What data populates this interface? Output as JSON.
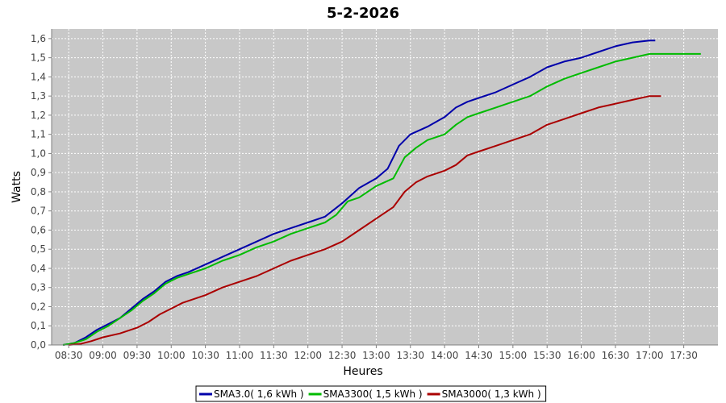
{
  "chart_data": {
    "type": "line",
    "title": "5-2-2026",
    "xlabel": "Heures",
    "ylabel": "Watts",
    "ylim": [
      0,
      1.65
    ],
    "xlim": [
      "08:15",
      "18:00"
    ],
    "y_ticks": [
      "0,0",
      "0,1",
      "0,2",
      "0,3",
      "0,4",
      "0,5",
      "0,6",
      "0,7",
      "0,8",
      "0,9",
      "1,0",
      "1,1",
      "1,2",
      "1,3",
      "1,4",
      "1,5",
      "1,6"
    ],
    "x_ticks": [
      "08:30",
      "09:00",
      "09:30",
      "10:00",
      "10:30",
      "11:00",
      "11:30",
      "12:00",
      "12:30",
      "13:00",
      "13:30",
      "14:00",
      "14:30",
      "15:00",
      "15:30",
      "16:00",
      "16:30",
      "17:00",
      "17:30"
    ],
    "grid": true,
    "legend_position": "bottom",
    "series": [
      {
        "name": "SMA3.0( 1,6 kWh )",
        "color": "#0000aa",
        "points": [
          [
            "08:25",
            0.0
          ],
          [
            "08:35",
            0.01
          ],
          [
            "08:45",
            0.04
          ],
          [
            "08:55",
            0.08
          ],
          [
            "09:05",
            0.11
          ],
          [
            "09:15",
            0.14
          ],
          [
            "09:25",
            0.19
          ],
          [
            "09:35",
            0.24
          ],
          [
            "09:45",
            0.28
          ],
          [
            "09:55",
            0.33
          ],
          [
            "10:05",
            0.36
          ],
          [
            "10:15",
            0.38
          ],
          [
            "10:30",
            0.42
          ],
          [
            "10:45",
            0.46
          ],
          [
            "11:00",
            0.5
          ],
          [
            "11:15",
            0.54
          ],
          [
            "11:30",
            0.58
          ],
          [
            "11:45",
            0.61
          ],
          [
            "12:00",
            0.64
          ],
          [
            "12:15",
            0.67
          ],
          [
            "12:30",
            0.74
          ],
          [
            "12:45",
            0.82
          ],
          [
            "13:00",
            0.87
          ],
          [
            "13:10",
            0.92
          ],
          [
            "13:20",
            1.04
          ],
          [
            "13:30",
            1.1
          ],
          [
            "13:45",
            1.14
          ],
          [
            "14:00",
            1.19
          ],
          [
            "14:10",
            1.24
          ],
          [
            "14:20",
            1.27
          ],
          [
            "14:30",
            1.29
          ],
          [
            "14:45",
            1.32
          ],
          [
            "15:00",
            1.36
          ],
          [
            "15:15",
            1.4
          ],
          [
            "15:30",
            1.45
          ],
          [
            "15:45",
            1.48
          ],
          [
            "16:00",
            1.5
          ],
          [
            "16:15",
            1.53
          ],
          [
            "16:30",
            1.56
          ],
          [
            "16:45",
            1.58
          ],
          [
            "17:00",
            1.59
          ],
          [
            "17:05",
            1.59
          ]
        ]
      },
      {
        "name": "SMA3300( 1,5 kWh )",
        "color": "#00bb00",
        "points": [
          [
            "08:25",
            0.0
          ],
          [
            "08:35",
            0.01
          ],
          [
            "08:45",
            0.03
          ],
          [
            "08:55",
            0.07
          ],
          [
            "09:05",
            0.1
          ],
          [
            "09:15",
            0.14
          ],
          [
            "09:25",
            0.18
          ],
          [
            "09:35",
            0.23
          ],
          [
            "09:45",
            0.27
          ],
          [
            "09:55",
            0.32
          ],
          [
            "10:05",
            0.35
          ],
          [
            "10:15",
            0.37
          ],
          [
            "10:30",
            0.4
          ],
          [
            "10:45",
            0.44
          ],
          [
            "11:00",
            0.47
          ],
          [
            "11:15",
            0.51
          ],
          [
            "11:30",
            0.54
          ],
          [
            "11:45",
            0.58
          ],
          [
            "12:00",
            0.61
          ],
          [
            "12:15",
            0.64
          ],
          [
            "12:25",
            0.68
          ],
          [
            "12:35",
            0.75
          ],
          [
            "12:45",
            0.77
          ],
          [
            "13:00",
            0.83
          ],
          [
            "13:15",
            0.87
          ],
          [
            "13:25",
            0.98
          ],
          [
            "13:35",
            1.03
          ],
          [
            "13:45",
            1.07
          ],
          [
            "14:00",
            1.1
          ],
          [
            "14:10",
            1.15
          ],
          [
            "14:20",
            1.19
          ],
          [
            "14:30",
            1.21
          ],
          [
            "14:45",
            1.24
          ],
          [
            "15:00",
            1.27
          ],
          [
            "15:15",
            1.3
          ],
          [
            "15:30",
            1.35
          ],
          [
            "15:45",
            1.39
          ],
          [
            "16:00",
            1.42
          ],
          [
            "16:15",
            1.45
          ],
          [
            "16:30",
            1.48
          ],
          [
            "16:45",
            1.5
          ],
          [
            "17:00",
            1.52
          ],
          [
            "17:30",
            1.52
          ],
          [
            "17:45",
            1.52
          ]
        ]
      },
      {
        "name": "SMA3000( 1,3 kWh )",
        "color": "#aa0000",
        "points": [
          [
            "08:30",
            0.0
          ],
          [
            "08:40",
            0.005
          ],
          [
            "08:50",
            0.02
          ],
          [
            "09:00",
            0.04
          ],
          [
            "09:15",
            0.06
          ],
          [
            "09:30",
            0.09
          ],
          [
            "09:40",
            0.12
          ],
          [
            "09:50",
            0.16
          ],
          [
            "10:00",
            0.19
          ],
          [
            "10:10",
            0.22
          ],
          [
            "10:30",
            0.26
          ],
          [
            "10:45",
            0.3
          ],
          [
            "11:00",
            0.33
          ],
          [
            "11:15",
            0.36
          ],
          [
            "11:30",
            0.4
          ],
          [
            "11:45",
            0.44
          ],
          [
            "12:00",
            0.47
          ],
          [
            "12:15",
            0.5
          ],
          [
            "12:30",
            0.54
          ],
          [
            "12:45",
            0.6
          ],
          [
            "13:00",
            0.66
          ],
          [
            "13:15",
            0.72
          ],
          [
            "13:25",
            0.8
          ],
          [
            "13:35",
            0.85
          ],
          [
            "13:45",
            0.88
          ],
          [
            "14:00",
            0.91
          ],
          [
            "14:10",
            0.94
          ],
          [
            "14:20",
            0.99
          ],
          [
            "14:30",
            1.01
          ],
          [
            "14:45",
            1.04
          ],
          [
            "15:00",
            1.07
          ],
          [
            "15:15",
            1.1
          ],
          [
            "15:30",
            1.15
          ],
          [
            "15:45",
            1.18
          ],
          [
            "16:00",
            1.21
          ],
          [
            "16:15",
            1.24
          ],
          [
            "16:30",
            1.26
          ],
          [
            "16:45",
            1.28
          ],
          [
            "17:00",
            1.3
          ],
          [
            "17:10",
            1.3
          ]
        ]
      }
    ]
  },
  "colors": {
    "plot_background": "#c8c8c8",
    "grid": "#ffffff",
    "axis": "#808080"
  }
}
